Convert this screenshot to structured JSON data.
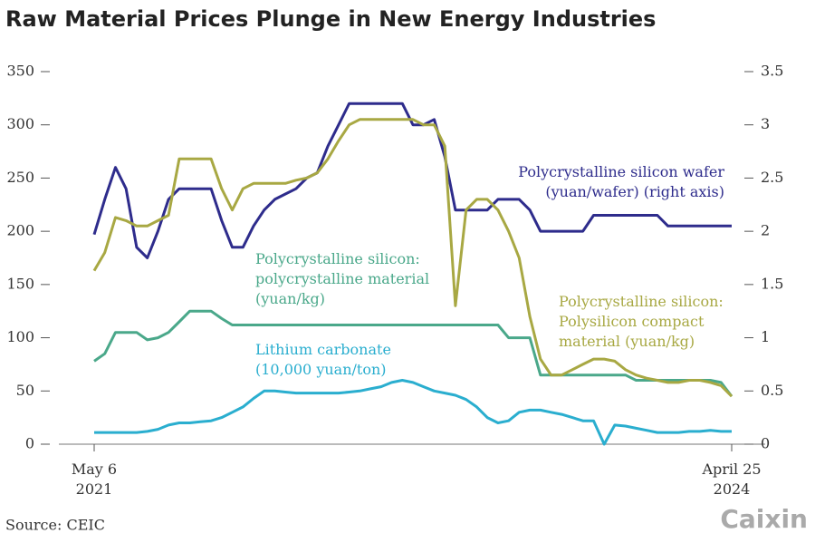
{
  "chart_data": {
    "type": "line",
    "title": "Raw Material Prices Plunge in New Energy Industries",
    "source": "Source: CEIC",
    "logo": "Caixin",
    "categories": [
      "May 6\n2021",
      null,
      null,
      null,
      null,
      null,
      null,
      null,
      null,
      null,
      null,
      null,
      null,
      null,
      null,
      null,
      null,
      null,
      null,
      null,
      null,
      null,
      null,
      null,
      null,
      null,
      null,
      null,
      null,
      null,
      null,
      null,
      null,
      null,
      null,
      null,
      null,
      null,
      null,
      null,
      null,
      null,
      null,
      null,
      null,
      null,
      null,
      null,
      null,
      null,
      null,
      null,
      null,
      null,
      null,
      null,
      null,
      null,
      null,
      null,
      "April 25\n2024"
    ],
    "ylim": [
      0,
      350
    ],
    "yticks": [
      0,
      50,
      100,
      150,
      200,
      250,
      300,
      350
    ],
    "y2lim": [
      0,
      3.5
    ],
    "y2ticks": [
      0,
      0.5,
      1,
      1.5,
      2,
      2.5,
      3,
      3.5
    ],
    "series": [
      {
        "name": "Polycrystalline silicon wafer\n(yuan/wafer) (right axis)",
        "color": "#2e2c8c",
        "axis": "y2",
        "values": [
          1.97,
          2.3,
          2.6,
          2.4,
          1.85,
          1.75,
          2.0,
          2.3,
          2.4,
          2.4,
          2.4,
          2.4,
          2.1,
          1.85,
          1.85,
          2.05,
          2.2,
          2.3,
          2.35,
          2.4,
          2.5,
          2.55,
          2.8,
          3.0,
          3.2,
          3.2,
          3.2,
          3.2,
          3.2,
          3.2,
          3.0,
          3.0,
          3.05,
          2.7,
          2.2,
          2.2,
          2.2,
          2.2,
          2.3,
          2.3,
          2.3,
          2.2,
          2.0,
          2.0,
          2.0,
          2.0,
          2.0,
          2.15,
          2.15,
          2.15,
          2.15,
          2.15,
          2.15,
          2.15,
          2.05,
          2.05,
          2.05,
          2.05,
          2.05,
          2.05,
          2.05
        ]
      },
      {
        "name": "Polycrystalline silicon:\npolycrystalline material\n(yuan/kg)",
        "color": "#4aa88a",
        "values": [
          78,
          85,
          105,
          105,
          105,
          98,
          100,
          105,
          115,
          125,
          125,
          125,
          118,
          112,
          112,
          112,
          112,
          112,
          112,
          112,
          112,
          112,
          112,
          112,
          112,
          112,
          112,
          112,
          112,
          112,
          112,
          112,
          112,
          112,
          112,
          112,
          112,
          112,
          112,
          100,
          100,
          100,
          65,
          65,
          65,
          65,
          65,
          65,
          65,
          65,
          65,
          60,
          60,
          60,
          60,
          60,
          60,
          60,
          60,
          58,
          45
        ]
      },
      {
        "name": "Polycrystalline silicon:\nPolysilicon compact\nmaterial (yuan/kg)",
        "color": "#a8a843",
        "values": [
          163,
          180,
          213,
          210,
          205,
          205,
          210,
          215,
          268,
          268,
          268,
          268,
          240,
          220,
          240,
          245,
          245,
          245,
          245,
          248,
          250,
          255,
          268,
          285,
          300,
          305,
          305,
          305,
          305,
          305,
          305,
          300,
          300,
          280,
          130,
          220,
          230,
          230,
          220,
          200,
          175,
          120,
          80,
          65,
          65,
          70,
          75,
          80,
          80,
          78,
          70,
          65,
          62,
          60,
          58,
          58,
          60,
          60,
          58,
          55,
          45
        ]
      },
      {
        "name": "Lithium carbonate\n(10,000 yuan/ton)",
        "color": "#2aaecf",
        "values": [
          11,
          11,
          11,
          11,
          11,
          12,
          14,
          18,
          20,
          20,
          21,
          22,
          25,
          30,
          35,
          43,
          50,
          50,
          49,
          48,
          48,
          48,
          48,
          48,
          49,
          50,
          52,
          54,
          58,
          60,
          58,
          54,
          50,
          48,
          46,
          42,
          35,
          25,
          20,
          22,
          30,
          32,
          32,
          30,
          28,
          25,
          22,
          22,
          0,
          18,
          17,
          15,
          13,
          11,
          11,
          11,
          12,
          12,
          13,
          12,
          12
        ]
      }
    ]
  }
}
